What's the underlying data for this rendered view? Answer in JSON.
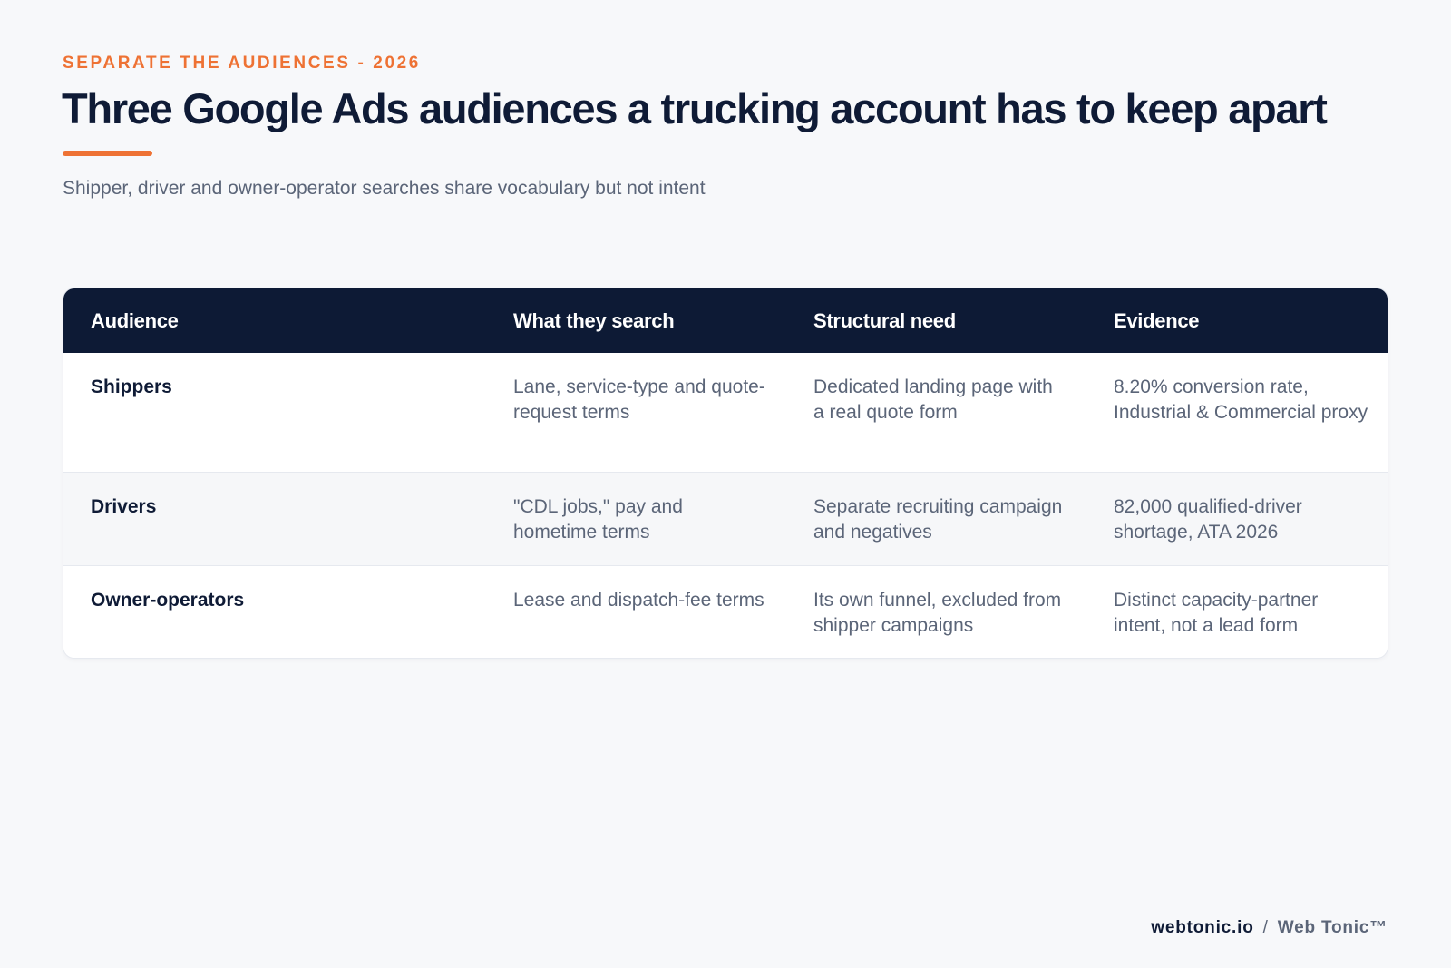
{
  "header": {
    "eyebrow": "SEPARATE THE AUDIENCES - 2026",
    "title": "Three Google Ads audiences a trucking account has to keep apart",
    "subtitle": "Shipper, driver and owner-operator searches share vocabulary but not intent"
  },
  "colors": {
    "accent": "#ee7234",
    "navy": "#0d1a35",
    "text_muted": "#5b6578",
    "background": "#f7f8fa"
  },
  "table": {
    "columns": [
      "Audience",
      "What they search",
      "Structural need",
      "Evidence"
    ],
    "rows": [
      {
        "audience": "Shippers",
        "search": "Lane, service-type and quote-request terms",
        "need": "Dedicated landing page with a real quote form",
        "evidence": "8.20% conversion rate, Industrial & Commercial proxy"
      },
      {
        "audience": "Drivers",
        "search": "\"CDL jobs,\" pay and hometime terms",
        "need": "Separate recruiting campaign and negatives",
        "evidence": "82,000 qualified-driver shortage, ATA 2026"
      },
      {
        "audience": "Owner-operators",
        "search": "Lease and dispatch-fee terms",
        "need": "Its own funnel, excluded from shipper campaigns",
        "evidence": "Distinct capacity-partner intent, not a lead form"
      }
    ]
  },
  "footer": {
    "domain": "webtonic.io",
    "separator": "/",
    "brand": "Web Tonic™"
  }
}
